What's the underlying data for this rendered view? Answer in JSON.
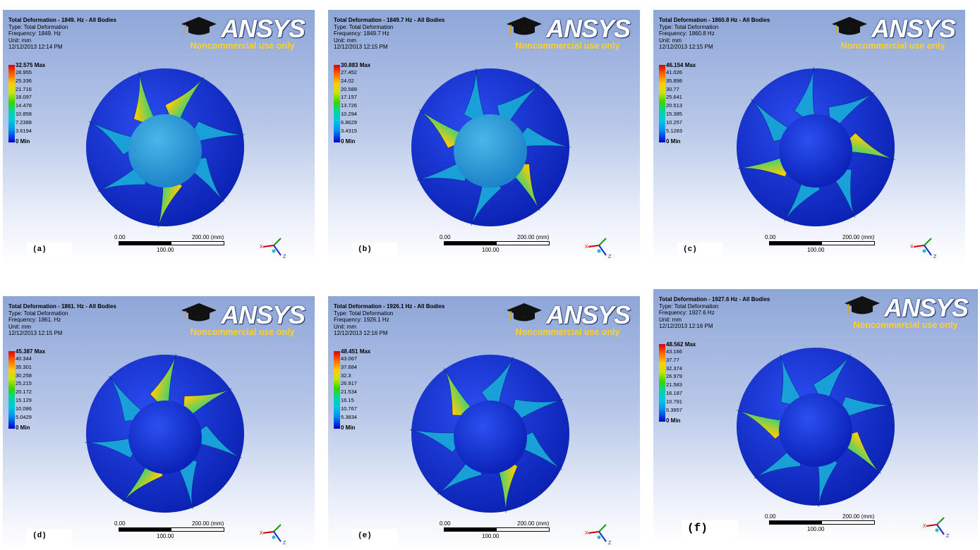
{
  "brand": "ANSYS",
  "brand_mark": "®",
  "noncommercial": "Noncommercial use only",
  "scale_0": "0.00",
  "scale_1": "200.00 (mm)",
  "scale_mid": "100.00",
  "axis_x": "X",
  "axis_z": "Z",
  "colors": {
    "max": "#d70000",
    "min": "#0000d0",
    "body": "#0a2fd0",
    "logo_text": "#ffd02a"
  },
  "panels": [
    {
      "id": "a",
      "title": "Total Deformation - 1849. Hz - All Bodies",
      "type": "Type: Total Deformation",
      "freq": "Frequency: 1849. Hz",
      "unit": "Unit: mm",
      "date": "12/12/2013 12:14 PM",
      "max": "32.575 Max",
      "ticks": [
        "28.955",
        "25.336",
        "21.716",
        "18.097",
        "14.478",
        "10.858",
        "7.2388",
        "3.6194"
      ],
      "min": "0 Min",
      "label": "(a)"
    },
    {
      "id": "b",
      "title": "Total Deformation - 1849.7 Hz - All Bodies",
      "type": "Type: Total Deformation",
      "freq": "Frequency: 1849.7 Hz",
      "unit": "Unit: mm",
      "date": "12/12/2013 12:15 PM",
      "max": "30.883 Max",
      "ticks": [
        "27.452",
        "24.02",
        "20.589",
        "17.157",
        "13.726",
        "10.294",
        "6.8629",
        "3.4315"
      ],
      "min": "0 Min",
      "label": "(b)"
    },
    {
      "id": "c",
      "title": "Total Deformation - 1860.8 Hz - All Bodies",
      "type": "Type: Total Deformation",
      "freq": "Frequency: 1860.8 Hz",
      "unit": "Unit: mm",
      "date": "12/12/2013 12:15 PM",
      "max": "46.154 Max",
      "ticks": [
        "41.026",
        "35.898",
        "30.77",
        "25.641",
        "20.513",
        "15.385",
        "10.257",
        "5.1283"
      ],
      "min": "0 Min",
      "label": "(c)"
    },
    {
      "id": "d",
      "title": "Total Deformation - 1861. Hz - All Bodies",
      "type": "Type: Total Deformation",
      "freq": "Frequency: 1861. Hz",
      "unit": "Unit: mm",
      "date": "12/12/2013 12:15 PM",
      "max": "45.387 Max",
      "ticks": [
        "40.344",
        "35.301",
        "30.258",
        "25.215",
        "20.172",
        "15.129",
        "10.086",
        "5.0429"
      ],
      "min": "0 Min",
      "label": "(d)"
    },
    {
      "id": "e",
      "title": "Total Deformation - 1926.1 Hz - All Bodies",
      "type": "Type: Total Deformation",
      "freq": "Frequency: 1926.1 Hz",
      "unit": "Unit: mm",
      "date": "12/12/2013 12:16 PM",
      "max": "48.451 Max",
      "ticks": [
        "43.067",
        "37.684",
        "32.3",
        "26.917",
        "21.534",
        "16.15",
        "10.767",
        "5.3834"
      ],
      "min": "0 Min",
      "label": "(e)"
    },
    {
      "id": "f",
      "title": "Total Deformation - 1927.6 Hz - All Bodies",
      "type": "Type: Total Deformation",
      "freq": "Frequency: 1927.6 Hz",
      "unit": "Unit: mm",
      "date": "12/12/2013 12:16 PM",
      "max": "48.562 Max",
      "ticks": [
        "43.166",
        "37.77",
        "32.374",
        "26.979",
        "21.583",
        "16.187",
        "10.791",
        "5.3957"
      ],
      "min": "0 Min",
      "label": "(f)"
    }
  ]
}
